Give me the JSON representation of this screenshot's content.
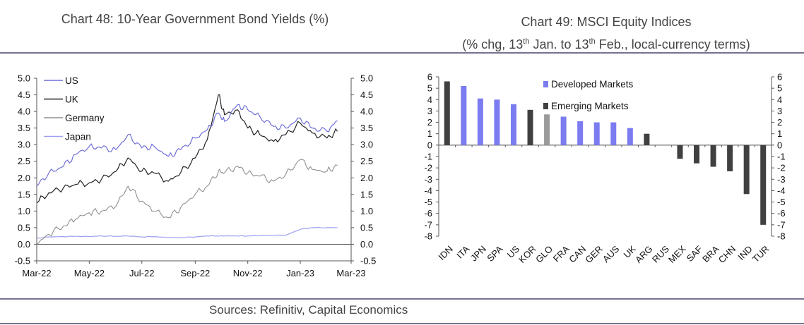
{
  "titles": {
    "chart48": "Chart 48: 10-Year Government Bond Yields (%)",
    "chart49_line1": "Chart 49: MSCI Equity Indices",
    "chart49_line2_pre": "(% chg, 13",
    "chart49_sup1": "th",
    "chart49_line2_mid": " Jan. to 13",
    "chart49_sup2": "th",
    "chart49_line2_post": " Feb., local-currency terms)"
  },
  "sources": "Sources:  Refinitiv, Capital Economics",
  "colors": {
    "US": "#6f70d6",
    "UK": "#222222",
    "Germany": "#909090",
    "Japan": "#9d9ff0",
    "developed": "#7b7cf0",
    "emerging": "#404040",
    "global": "#9a9a9a",
    "rule": "#7a7191"
  },
  "chart_data": [
    {
      "type": "line",
      "title": "Chart 48: 10-Year Government Bond Yields (%)",
      "x_ticks": [
        "Mar-22",
        "May-22",
        "Jul-22",
        "Sep-22",
        "Nov-22",
        "Jan-23",
        "Mar-23"
      ],
      "ylim": [
        -0.5,
        5.0
      ],
      "y_ticks": [
        "5.0",
        "4.5",
        "4.0",
        "3.5",
        "3.0",
        "2.5",
        "2.0",
        "1.5",
        "1.0",
        "0.5",
        "0.0",
        "-0.5"
      ],
      "y_ticks_right": [
        "5.0",
        "4.5",
        "4.0",
        "3.5",
        "3.0",
        "2.5",
        "2.0",
        "1.5",
        "1.0",
        "0.5",
        "0.0",
        "-0.5"
      ],
      "legend": "top-left",
      "x": [
        "2022-03-01",
        "2022-03-15",
        "2022-04-01",
        "2022-04-15",
        "2022-05-01",
        "2022-05-15",
        "2022-06-01",
        "2022-06-15",
        "2022-07-01",
        "2022-07-15",
        "2022-08-01",
        "2022-08-15",
        "2022-09-01",
        "2022-09-15",
        "2022-09-28",
        "2022-10-05",
        "2022-10-20",
        "2022-11-01",
        "2022-11-15",
        "2022-12-01",
        "2022-12-15",
        "2023-01-01",
        "2023-01-15",
        "2023-02-01",
        "2023-02-13"
      ],
      "series": [
        {
          "name": "US",
          "values": [
            1.75,
            2.15,
            2.35,
            2.7,
            2.95,
            2.9,
            2.85,
            3.3,
            2.9,
            2.95,
            2.65,
            2.85,
            3.2,
            3.45,
            3.95,
            3.7,
            4.2,
            4.05,
            3.85,
            3.55,
            3.5,
            3.8,
            3.5,
            3.4,
            3.72
          ]
        },
        {
          "name": "UK",
          "values": [
            1.25,
            1.55,
            1.7,
            1.8,
            1.85,
            1.95,
            2.2,
            2.6,
            2.2,
            2.15,
            1.9,
            2.15,
            2.6,
            3.15,
            4.5,
            3.9,
            4.05,
            3.5,
            3.3,
            3.1,
            3.3,
            3.65,
            3.35,
            3.2,
            3.4
          ]
        },
        {
          "name": "Germany",
          "values": [
            0.0,
            0.3,
            0.55,
            0.75,
            0.95,
            1.0,
            1.15,
            1.75,
            1.3,
            1.0,
            0.8,
            1.1,
            1.5,
            1.75,
            2.2,
            2.15,
            2.35,
            2.15,
            2.05,
            1.9,
            2.1,
            2.55,
            2.25,
            2.2,
            2.37
          ]
        },
        {
          "name": "Japan",
          "values": [
            0.18,
            0.22,
            0.23,
            0.24,
            0.23,
            0.25,
            0.24,
            0.25,
            0.22,
            0.23,
            0.2,
            0.2,
            0.22,
            0.25,
            0.25,
            0.25,
            0.25,
            0.25,
            0.26,
            0.27,
            0.27,
            0.45,
            0.5,
            0.5,
            0.5
          ]
        }
      ]
    },
    {
      "type": "bar",
      "title": "Chart 49: MSCI Equity Indices",
      "subtitle": "(% chg, 13th Jan. to 13th Feb., local-currency terms)",
      "ylim": [
        -8,
        6
      ],
      "y_ticks": [
        "6",
        "5",
        "4",
        "3",
        "2",
        "1",
        "0",
        "-1",
        "-2",
        "-3",
        "-4",
        "-5",
        "-6",
        "-7",
        "-8"
      ],
      "legend": "top-center",
      "categories": [
        "IDN",
        "ITA",
        "JPN",
        "SPA",
        "US",
        "KOR",
        "GLO",
        "FRA",
        "CAN",
        "GER",
        "AUS",
        "UK",
        "ARG",
        "RUS",
        "MEX",
        "SAF",
        "BRA",
        "CHN",
        "IND",
        "TUR"
      ],
      "values": [
        5.6,
        5.2,
        4.1,
        4.0,
        3.6,
        3.1,
        2.7,
        2.5,
        2.1,
        2.0,
        2.0,
        1.5,
        1.0,
        0,
        -1.2,
        -1.6,
        -1.9,
        -2.3,
        -4.3,
        -7.0
      ],
      "groups": [
        "Emerging Markets",
        "Developed Markets",
        "Developed Markets",
        "Developed Markets",
        "Developed Markets",
        "Emerging Markets",
        "Global",
        "Developed Markets",
        "Developed Markets",
        "Developed Markets",
        "Developed Markets",
        "Developed Markets",
        "Emerging Markets",
        "Emerging Markets",
        "Emerging Markets",
        "Emerging Markets",
        "Emerging Markets",
        "Emerging Markets",
        "Emerging Markets",
        "Emerging Markets"
      ],
      "legend_entries": [
        "Developed Markets",
        "Emerging Markets"
      ]
    }
  ]
}
